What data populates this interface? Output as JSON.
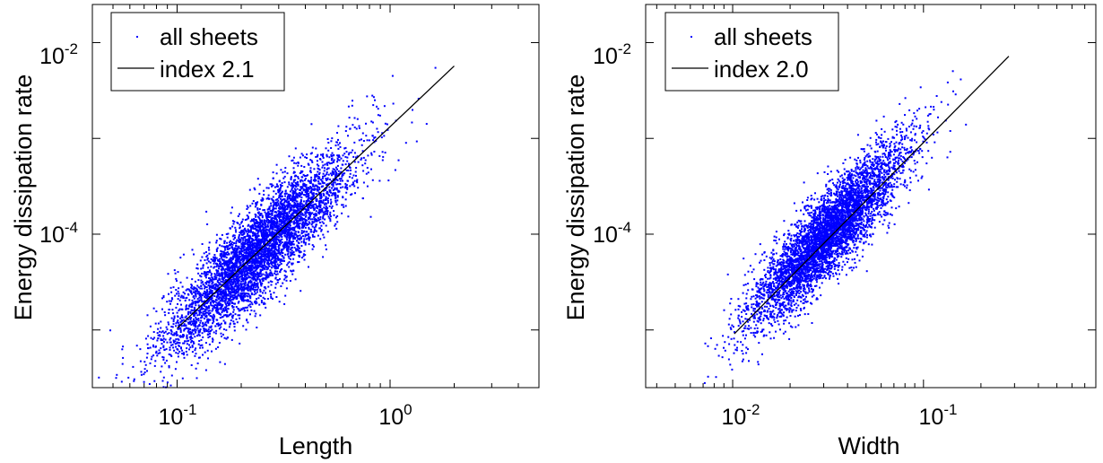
{
  "chart_data": [
    {
      "type": "scatter",
      "xscale": "log",
      "yscale": "log",
      "xlabel": "Length",
      "ylabel": "Energy dissipation rate",
      "xlim": [
        0.04,
        5
      ],
      "ylim": [
        2.5e-06,
        0.025
      ],
      "xticks": [
        {
          "base": "10",
          "exp": "-1",
          "value": 0.1
        },
        {
          "base": "10",
          "exp": "0",
          "value": 1
        }
      ],
      "yticks": [
        {
          "base": "10",
          "exp": "-4",
          "value": 0.0001
        },
        {
          "base": "10",
          "exp": "-2",
          "value": 0.01
        }
      ],
      "legend_position": "top-left",
      "series": [
        {
          "name": "all sheets",
          "kind": "points",
          "color": "#0000ff",
          "approx_count": 5000,
          "x_log_center": -0.62,
          "x_log_sd": 0.22,
          "fit_index": 2.1,
          "fit_intercept_log": -2.88,
          "y_log_scatter_sd": 0.24
        },
        {
          "name": "index 2.1",
          "kind": "line",
          "color": "#000000",
          "x": [
            0.1,
            2.0
          ],
          "y": [
            1.04e-05,
            0.0057
          ]
        }
      ]
    },
    {
      "type": "scatter",
      "xscale": "log",
      "yscale": "log",
      "xlabel": "Width",
      "ylabel": "Energy dissipation rate",
      "xlim": [
        0.0035,
        0.8
      ],
      "ylim": [
        2.5e-06,
        0.025
      ],
      "xticks": [
        {
          "base": "10",
          "exp": "-2",
          "value": 0.01
        },
        {
          "base": "10",
          "exp": "-1",
          "value": 0.1
        }
      ],
      "yticks": [
        {
          "base": "10",
          "exp": "-4",
          "value": 0.0001
        },
        {
          "base": "10",
          "exp": "-2",
          "value": 0.01
        }
      ],
      "legend_position": "top-left",
      "series": [
        {
          "name": "all sheets",
          "kind": "points",
          "color": "#0000ff",
          "approx_count": 5000,
          "x_log_center": -1.5,
          "x_log_sd": 0.2,
          "fit_index": 2.0,
          "fit_intercept_log": -1.0,
          "y_log_scatter_sd": 0.22
        },
        {
          "name": "index 2.0",
          "kind": "line",
          "color": "#000000",
          "x": [
            0.0102,
            0.28
          ],
          "y": [
            9.1e-06,
            0.0072
          ]
        }
      ]
    }
  ]
}
